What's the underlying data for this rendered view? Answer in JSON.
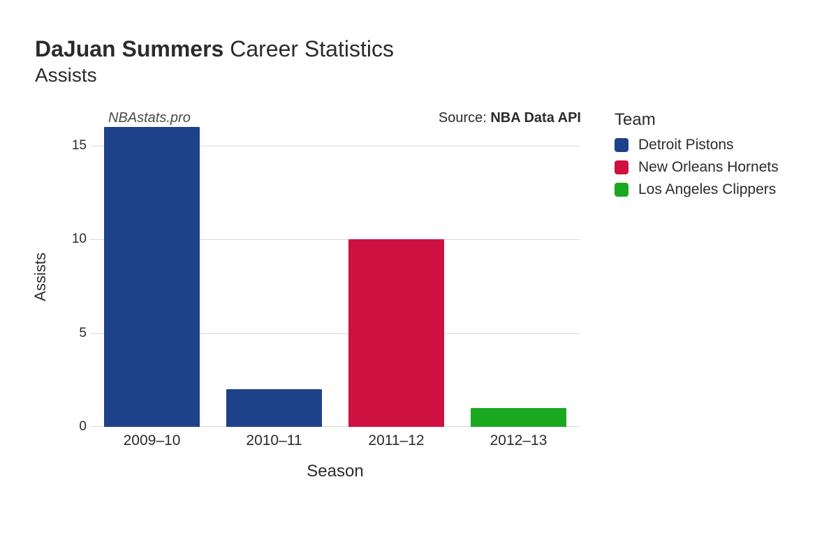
{
  "title": {
    "bold": "DaJuan Summers",
    "rest": " Career Statistics",
    "subtitle": "Assists"
  },
  "watermark": "NBAstats.pro",
  "source": {
    "label": "Source: ",
    "value": "NBA Data API"
  },
  "chart": {
    "type": "bar",
    "xlabel": "Season",
    "ylabel": "Assists",
    "ylim": [
      0,
      16
    ],
    "yticks": [
      0,
      5,
      10,
      15
    ],
    "grid_color": "#d9d9d9",
    "background_color": "#ffffff",
    "bar_width_ratio": 0.78,
    "categories": [
      "2009–10",
      "2010–11",
      "2011–12",
      "2012–13"
    ],
    "values": [
      16,
      2,
      10,
      1
    ],
    "bar_colors": [
      "#1d428a",
      "#1d428a",
      "#ce1141",
      "#1ba821"
    ],
    "label_fontsize": 21,
    "axis_title_fontsize": 24,
    "tick_fontsize": 19
  },
  "legend": {
    "title": "Team",
    "items": [
      {
        "label": "Detroit Pistons",
        "color": "#1d428a"
      },
      {
        "label": "New Orleans Hornets",
        "color": "#ce1141"
      },
      {
        "label": "Los Angeles Clippers",
        "color": "#1ba821"
      }
    ]
  }
}
